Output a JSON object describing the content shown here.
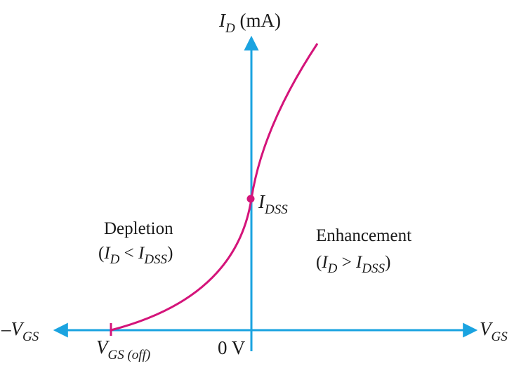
{
  "y_axis": {
    "symbol": "I",
    "subscript": "D",
    "unit": " (mA)"
  },
  "x_axis_positive": {
    "symbol": "V",
    "subscript": "GS"
  },
  "x_axis_negative": {
    "symbol": "–V",
    "subscript": "GS"
  },
  "cutoff_label": {
    "symbol": "V",
    "subscript": "GS (off)"
  },
  "origin_label": "0 V",
  "idss_label": {
    "symbol": "I",
    "subscript": "DSS"
  },
  "depletion": {
    "title": "Depletion",
    "open": "(",
    "lhs_symbol": "I",
    "lhs_sub": "D",
    "relation": " < ",
    "rhs_symbol": "I",
    "rhs_sub": "DSS",
    "close": ")"
  },
  "enhancement": {
    "title": "Enhancement",
    "open": "(",
    "lhs_symbol": "I",
    "lhs_sub": "D",
    "relation": " > ",
    "rhs_symbol": "I",
    "rhs_sub": "DSS",
    "close": ")"
  },
  "colors": {
    "axis": "#1aa3e0",
    "curve": "#d4147a",
    "text": "#1a1a1a"
  }
}
